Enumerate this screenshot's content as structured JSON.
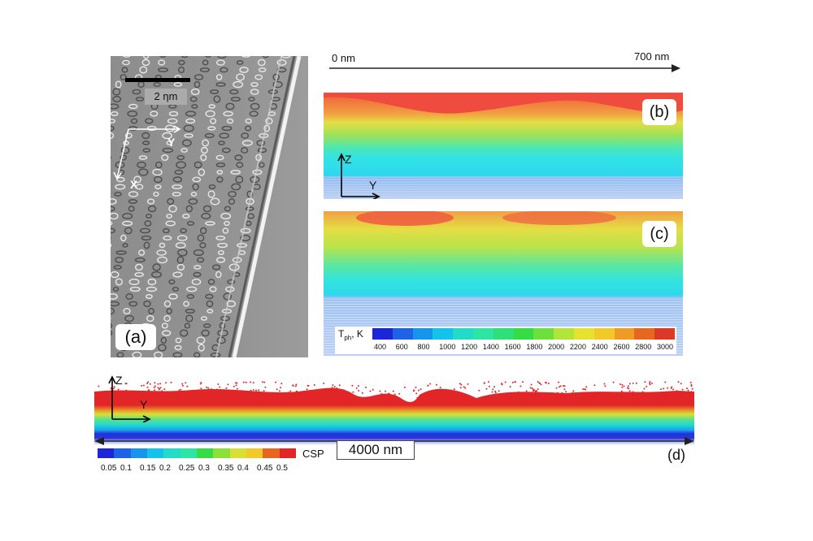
{
  "panel_a": {
    "scale_label": "2 ηm",
    "axis_y": "Y",
    "axis_x": "X",
    "panel_label": "(a)"
  },
  "top_axis": {
    "start_label": "0 nm",
    "end_label": "700 nm"
  },
  "panel_b": {
    "panel_label": "(b)",
    "axis_z": "Z",
    "axis_y": "Y"
  },
  "panel_c": {
    "panel_label": "(c)",
    "legend_title": "T",
    "legend_title_sub": "ph",
    "legend_unit": ", K",
    "legend_colors": [
      "#1c25d8",
      "#1e63e6",
      "#1795ec",
      "#14c3ea",
      "#22dcc8",
      "#2ee6a4",
      "#2fe07a",
      "#36dc44",
      "#6ee03c",
      "#b2e43a",
      "#e6e232",
      "#f3c92a",
      "#f09c24",
      "#e8671e",
      "#dc3a26"
    ],
    "legend_ticks": [
      "400",
      "600",
      "800",
      "1000",
      "1200",
      "1400",
      "1600",
      "1800",
      "2000",
      "2200",
      "2400",
      "2600",
      "2800",
      "3000"
    ]
  },
  "panel_d": {
    "panel_label": "(d)",
    "axis_z": "Z",
    "axis_y": "Y",
    "width_label": "4000 nm",
    "legend_title": "CSP",
    "legend_colors": [
      "#1c25d8",
      "#1e63e6",
      "#1795ec",
      "#14c3ea",
      "#22dcc8",
      "#2ee6a4",
      "#36dc44",
      "#8be03a",
      "#d8e035",
      "#f3c92a",
      "#e8671e",
      "#e22628"
    ],
    "legend_ticks": [
      "0.05",
      "0.1",
      "0.15",
      "0.2",
      "0.25",
      "0.3",
      "0.35",
      "0.4",
      "0.45",
      "0.5"
    ]
  }
}
